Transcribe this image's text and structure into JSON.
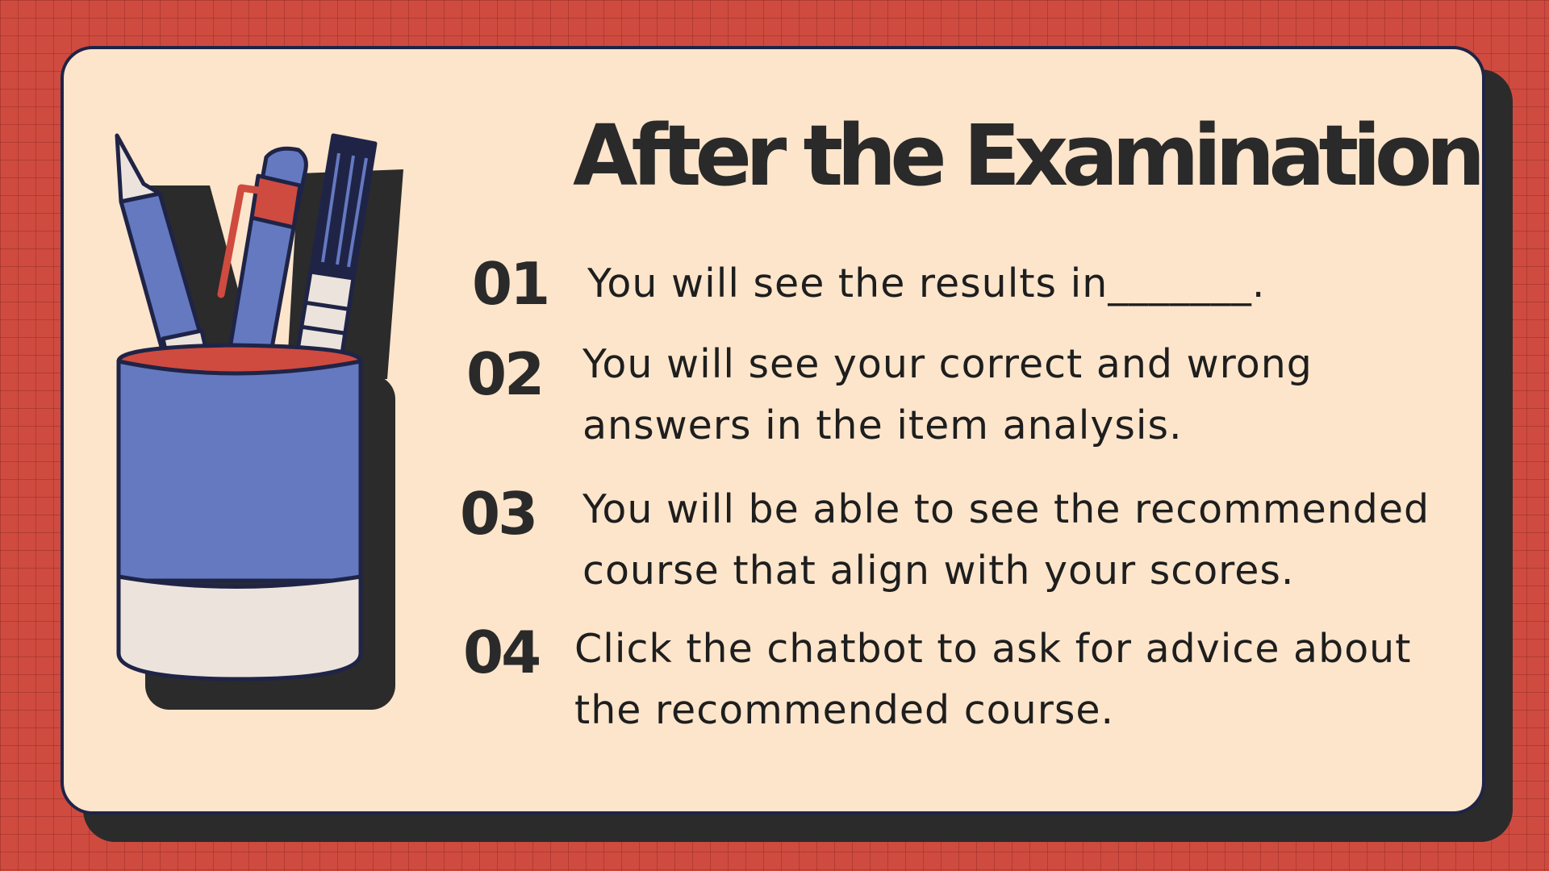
{
  "slide": {
    "title": "After the Examination",
    "steps": [
      {
        "number": "01",
        "text": "You will see the results in_______."
      },
      {
        "number": "02",
        "text": "You will see your correct and wrong answers in the item analysis."
      },
      {
        "number": "03",
        "text": "You will be able to see the recommended course that align with your scores."
      },
      {
        "number": "04",
        "text": "Click the chatbot to ask for advice about the recommended course."
      }
    ]
  },
  "illustration": {
    "icon": "pencil-cup-icon",
    "colors": {
      "cup_blue": "#6479c0",
      "cup_band": "#ece4dc",
      "cup_inner": "#cf4b3f",
      "outline": "#1f2447",
      "shadow": "#2b2b2b"
    }
  },
  "colors": {
    "background": "#cf4b3f",
    "card": "#fde5cb",
    "card_border": "#1f2447",
    "card_shadow": "#2b2b2b",
    "text": "#2a2a2a"
  }
}
